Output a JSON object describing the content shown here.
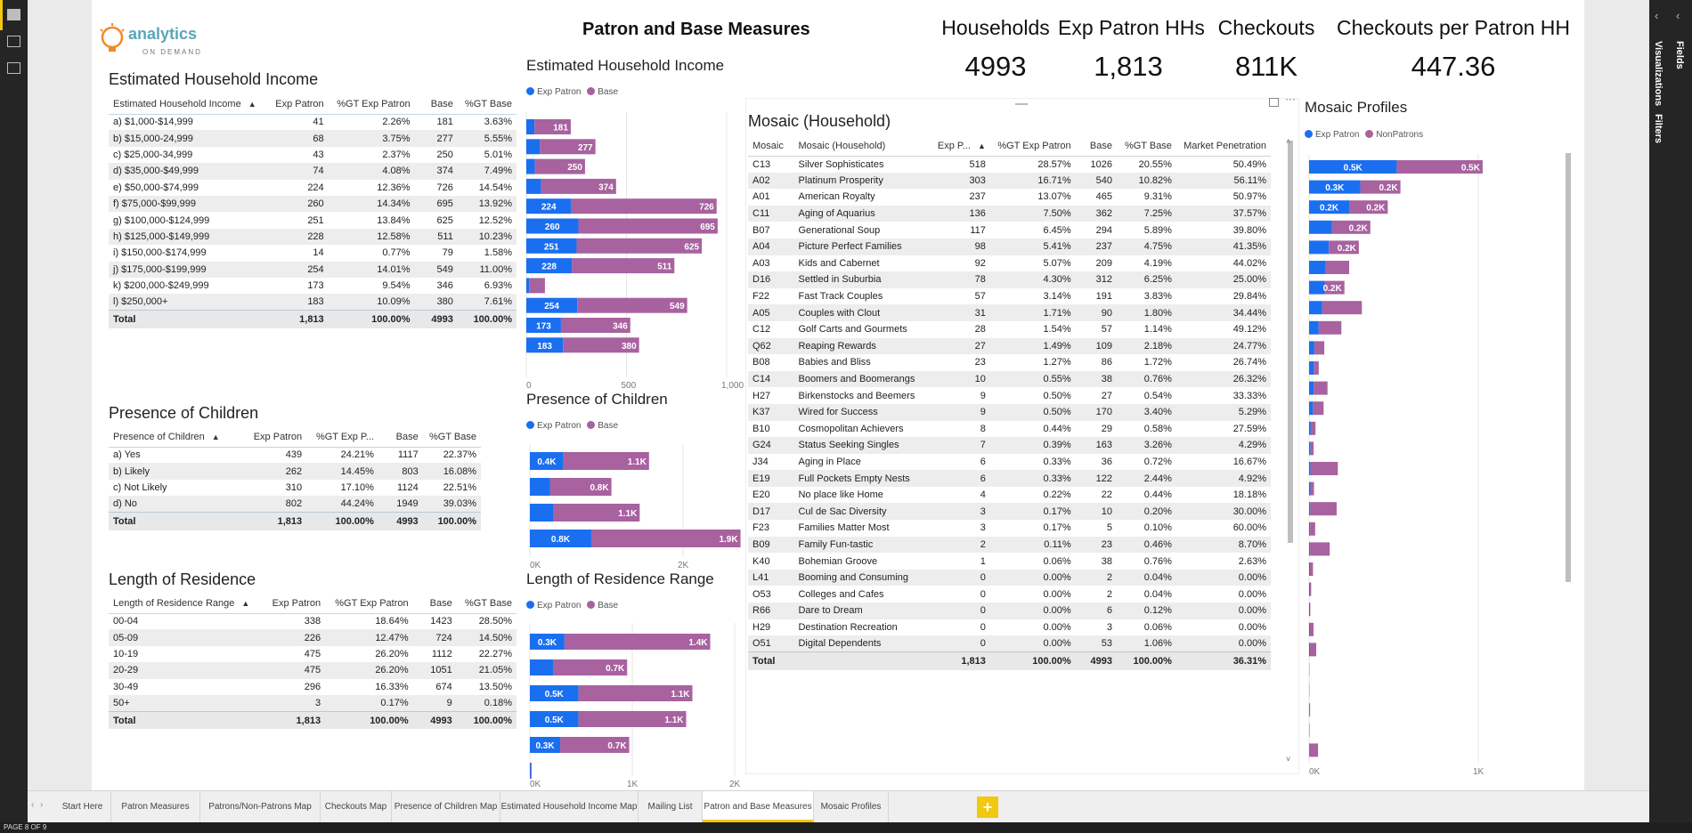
{
  "page_title": "Patron and Base Measures",
  "logo": {
    "main": "analytics",
    "sub": "ON DEMAND"
  },
  "cards": [
    {
      "label": "Households",
      "value": "4993"
    },
    {
      "label": "Exp Patron HHs",
      "value": "1,813"
    },
    {
      "label": "Checkouts",
      "value": "811K"
    },
    {
      "label": "Checkouts per Patron HH",
      "value": "447.36"
    }
  ],
  "income_table": {
    "title": "Estimated Household Income",
    "headers": [
      "Estimated Household Income",
      "Exp Patron",
      "%GT Exp Patron",
      "Base",
      "%GT Base"
    ],
    "rows": [
      [
        "a) $1,000-$14,999",
        "41",
        "2.26%",
        "181",
        "3.63%"
      ],
      [
        "b) $15,000-24,999",
        "68",
        "3.75%",
        "277",
        "5.55%"
      ],
      [
        "c) $25,000-34,999",
        "43",
        "2.37%",
        "250",
        "5.01%"
      ],
      [
        "d) $35,000-$49,999",
        "74",
        "4.08%",
        "374",
        "7.49%"
      ],
      [
        "e) $50,000-$74,999",
        "224",
        "12.36%",
        "726",
        "14.54%"
      ],
      [
        "f) $75,000-$99,999",
        "260",
        "14.34%",
        "695",
        "13.92%"
      ],
      [
        "g) $100,000-$124,999",
        "251",
        "13.84%",
        "625",
        "12.52%"
      ],
      [
        "h) $125,000-$149,999",
        "228",
        "12.58%",
        "511",
        "10.23%"
      ],
      [
        "i) $150,000-$174,999",
        "14",
        "0.77%",
        "79",
        "1.58%"
      ],
      [
        "j) $175,000-$199,999",
        "254",
        "14.01%",
        "549",
        "11.00%"
      ],
      [
        "k) $200,000-$249,999",
        "173",
        "9.54%",
        "346",
        "6.93%"
      ],
      [
        "l) $250,000+",
        "183",
        "10.09%",
        "380",
        "7.61%"
      ]
    ],
    "total": [
      "Total",
      "1,813",
      "100.00%",
      "4993",
      "100.00%"
    ]
  },
  "children_table": {
    "title": "Presence of Children",
    "headers": [
      "Presence of Children",
      "Exp Patron",
      "%GT Exp P...",
      "Base",
      "%GT Base"
    ],
    "rows": [
      [
        "a) Yes",
        "439",
        "24.21%",
        "1117",
        "22.37%"
      ],
      [
        "b) Likely",
        "262",
        "14.45%",
        "803",
        "16.08%"
      ],
      [
        "c) Not Likely",
        "310",
        "17.10%",
        "1124",
        "22.51%"
      ],
      [
        "d) No",
        "802",
        "44.24%",
        "1949",
        "39.03%"
      ]
    ],
    "total": [
      "Total",
      "1,813",
      "100.00%",
      "4993",
      "100.00%"
    ]
  },
  "residence_table": {
    "title": "Length of Residence",
    "headers": [
      "Length of Residence Range",
      "Exp Patron",
      "%GT Exp Patron",
      "Base",
      "%GT Base"
    ],
    "rows": [
      [
        "00-04",
        "338",
        "18.64%",
        "1423",
        "28.50%"
      ],
      [
        "05-09",
        "226",
        "12.47%",
        "724",
        "14.50%"
      ],
      [
        "10-19",
        "475",
        "26.20%",
        "1112",
        "22.27%"
      ],
      [
        "20-29",
        "475",
        "26.20%",
        "1051",
        "21.05%"
      ],
      [
        "30-49",
        "296",
        "16.33%",
        "674",
        "13.50%"
      ],
      [
        "50+",
        "3",
        "0.17%",
        "9",
        "0.18%"
      ]
    ],
    "total": [
      "Total",
      "1,813",
      "100.00%",
      "4993",
      "100.00%"
    ]
  },
  "mosaic_table": {
    "title": "Mosaic (Household)",
    "headers": [
      "Mosaic",
      "Mosaic (Household)",
      "Exp P...",
      "%GT Exp Patron",
      "Base",
      "%GT Base",
      "Market Penetration"
    ],
    "rows": [
      [
        "C13",
        "Silver Sophisticates",
        "518",
        "28.57%",
        "1026",
        "20.55%",
        "50.49%"
      ],
      [
        "A02",
        "Platinum Prosperity",
        "303",
        "16.71%",
        "540",
        "10.82%",
        "56.11%"
      ],
      [
        "A01",
        "American Royalty",
        "237",
        "13.07%",
        "465",
        "9.31%",
        "50.97%"
      ],
      [
        "C11",
        "Aging of Aquarius",
        "136",
        "7.50%",
        "362",
        "7.25%",
        "37.57%"
      ],
      [
        "B07",
        "Generational Soup",
        "117",
        "6.45%",
        "294",
        "5.89%",
        "39.80%"
      ],
      [
        "A04",
        "Picture Perfect Families",
        "98",
        "5.41%",
        "237",
        "4.75%",
        "41.35%"
      ],
      [
        "A03",
        "Kids and Cabernet",
        "92",
        "5.07%",
        "209",
        "4.19%",
        "44.02%"
      ],
      [
        "D16",
        "Settled in Suburbia",
        "78",
        "4.30%",
        "312",
        "6.25%",
        "25.00%"
      ],
      [
        "F22",
        "Fast Track Couples",
        "57",
        "3.14%",
        "191",
        "3.83%",
        "29.84%"
      ],
      [
        "A05",
        "Couples with Clout",
        "31",
        "1.71%",
        "90",
        "1.80%",
        "34.44%"
      ],
      [
        "C12",
        "Golf Carts and Gourmets",
        "28",
        "1.54%",
        "57",
        "1.14%",
        "49.12%"
      ],
      [
        "Q62",
        "Reaping Rewards",
        "27",
        "1.49%",
        "109",
        "2.18%",
        "24.77%"
      ],
      [
        "B08",
        "Babies and Bliss",
        "23",
        "1.27%",
        "86",
        "1.72%",
        "26.74%"
      ],
      [
        "C14",
        "Boomers and Boomerangs",
        "10",
        "0.55%",
        "38",
        "0.76%",
        "26.32%"
      ],
      [
        "H27",
        "Birkenstocks and Beemers",
        "9",
        "0.50%",
        "27",
        "0.54%",
        "33.33%"
      ],
      [
        "K37",
        "Wired for Success",
        "9",
        "0.50%",
        "170",
        "3.40%",
        "5.29%"
      ],
      [
        "B10",
        "Cosmopolitan Achievers",
        "8",
        "0.44%",
        "29",
        "0.58%",
        "27.59%"
      ],
      [
        "G24",
        "Status Seeking Singles",
        "7",
        "0.39%",
        "163",
        "3.26%",
        "4.29%"
      ],
      [
        "J34",
        "Aging in Place",
        "6",
        "0.33%",
        "36",
        "0.72%",
        "16.67%"
      ],
      [
        "E19",
        "Full Pockets  Empty Nests",
        "6",
        "0.33%",
        "122",
        "2.44%",
        "4.92%"
      ],
      [
        "E20",
        "No place like Home",
        "4",
        "0.22%",
        "22",
        "0.44%",
        "18.18%"
      ],
      [
        "D17",
        "Cul de Sac Diversity",
        "3",
        "0.17%",
        "10",
        "0.20%",
        "30.00%"
      ],
      [
        "F23",
        "Families Matter Most",
        "3",
        "0.17%",
        "5",
        "0.10%",
        "60.00%"
      ],
      [
        "B09",
        "Family Fun-tastic",
        "2",
        "0.11%",
        "23",
        "0.46%",
        "8.70%"
      ],
      [
        "K40",
        "Bohemian Groove",
        "1",
        "0.06%",
        "38",
        "0.76%",
        "2.63%"
      ],
      [
        "L41",
        "Booming and Consuming",
        "0",
        "0.00%",
        "2",
        "0.04%",
        "0.00%"
      ],
      [
        "O53",
        "Colleges and Cafes",
        "0",
        "0.00%",
        "2",
        "0.04%",
        "0.00%"
      ],
      [
        "R66",
        "Dare to Dream",
        "0",
        "0.00%",
        "6",
        "0.12%",
        "0.00%"
      ],
      [
        "H29",
        "Destination Recreation",
        "0",
        "0.00%",
        "3",
        "0.06%",
        "0.00%"
      ],
      [
        "O51",
        "Digital Dependents",
        "0",
        "0.00%",
        "53",
        "1.06%",
        "0.00%"
      ]
    ],
    "total": [
      "Total",
      "",
      "1,813",
      "100.00%",
      "4993",
      "100.00%",
      "36.31%"
    ]
  },
  "chart_data": [
    {
      "type": "bar",
      "orientation": "horizontal",
      "stacked": true,
      "title": "Estimated Household Income",
      "legend": [
        "Exp Patron",
        "Base"
      ],
      "colors": {
        "Exp Patron": "#1a6ff0",
        "Base": "#a8629f"
      },
      "series": [
        {
          "name": "Exp Patron",
          "values": [
            41,
            68,
            43,
            74,
            224,
            260,
            251,
            228,
            14,
            254,
            173,
            183
          ]
        },
        {
          "name": "Base",
          "values": [
            181,
            277,
            250,
            374,
            726,
            695,
            625,
            511,
            79,
            549,
            346,
            380
          ]
        }
      ],
      "segment_labels": {
        "Exp Patron": [
          "",
          "",
          "",
          "",
          "224",
          "260",
          "251",
          "228",
          "",
          "254",
          "173",
          "183"
        ],
        "Base": [
          "181",
          "277",
          "250",
          "374",
          "726",
          "695",
          "625",
          "511",
          "",
          "549",
          "346",
          "380"
        ]
      },
      "axis_max": 1000,
      "ticks": [
        {
          "v": 0,
          "label": "0"
        },
        {
          "v": 500,
          "label": "500"
        },
        {
          "v": 1000,
          "label": "1,000"
        }
      ]
    },
    {
      "type": "bar",
      "orientation": "horizontal",
      "stacked": true,
      "title": "Presence of Children",
      "legend": [
        "Exp Patron",
        "Base"
      ],
      "colors": {
        "Exp Patron": "#1a6ff0",
        "Base": "#a8629f"
      },
      "series": [
        {
          "name": "Exp Patron",
          "values": [
            439,
            262,
            310,
            802
          ]
        },
        {
          "name": "Base",
          "values": [
            1117,
            803,
            1124,
            1949
          ]
        }
      ],
      "segment_labels": {
        "Exp Patron": [
          "0.4K",
          "",
          "",
          "0.8K"
        ],
        "Base": [
          "1.1K",
          "0.8K",
          "1.1K",
          "1.9K"
        ]
      },
      "axis_max": 2500,
      "ticks": [
        {
          "v": 0,
          "label": "0K"
        },
        {
          "v": 2000,
          "label": "2K"
        }
      ]
    },
    {
      "type": "bar",
      "orientation": "horizontal",
      "stacked": true,
      "title": "Length of Residence Range",
      "legend": [
        "Exp Patron",
        "Base"
      ],
      "colors": {
        "Exp Patron": "#1a6ff0",
        "Base": "#a8629f"
      },
      "series": [
        {
          "name": "Exp Patron",
          "values": [
            338,
            226,
            475,
            475,
            296,
            3
          ]
        },
        {
          "name": "Base",
          "values": [
            1423,
            724,
            1112,
            1051,
            674,
            9
          ]
        }
      ],
      "segment_labels": {
        "Exp Patron": [
          "0.3K",
          "",
          "0.5K",
          "0.5K",
          "0.3K",
          ""
        ],
        "Base": [
          "1.4K",
          "0.7K",
          "1.1K",
          "1.1K",
          "0.7K",
          ""
        ]
      },
      "axis_max": 2000,
      "ticks": [
        {
          "v": 0,
          "label": "0K"
        },
        {
          "v": 1000,
          "label": "1K"
        },
        {
          "v": 2000,
          "label": "2K"
        }
      ]
    },
    {
      "type": "bar",
      "orientation": "horizontal",
      "stacked": true,
      "title": "Mosaic Profiles",
      "legend": [
        "Exp Patron",
        "NonPatrons"
      ],
      "colors": {
        "Exp Patron": "#1a6ff0",
        "NonPatrons": "#a8629f"
      },
      "series": [
        {
          "name": "Exp Patron",
          "values": [
            518,
            303,
            237,
            136,
            117,
            98,
            92,
            78,
            57,
            31,
            28,
            27,
            23,
            10,
            9,
            9,
            8,
            7,
            6,
            6,
            4,
            3,
            3,
            2,
            1,
            0,
            0,
            0,
            0,
            0
          ]
        },
        {
          "name": "NonPatrons",
          "values": [
            508,
            237,
            228,
            226,
            177,
            139,
            117,
            234,
            134,
            59,
            29,
            82,
            63,
            28,
            18,
            161,
            21,
            156,
            30,
            116,
            18,
            7,
            2,
            21,
            37,
            2,
            2,
            6,
            3,
            53
          ]
        }
      ],
      "segment_labels": {
        "Exp Patron": [
          "0.5K",
          "0.3K",
          "0.2K",
          "",
          "",
          "",
          "",
          "",
          "",
          "",
          "",
          "",
          "",
          "",
          "",
          "",
          "",
          "",
          "",
          "",
          "",
          "",
          "",
          "",
          "",
          "",
          "",
          "",
          "",
          ""
        ],
        "NonPatrons": [
          "0.5K",
          "0.2K",
          "0.2K",
          "0.2K",
          "0.2K",
          "",
          "0.2K",
          "",
          "",
          "",
          "",
          "",
          "",
          "",
          "",
          "",
          "",
          "",
          "",
          "",
          "",
          "",
          "",
          "",
          "",
          "",
          "",
          "",
          "",
          ""
        ]
      },
      "axis_max": 1000,
      "ticks": [
        {
          "v": 0,
          "label": "0K"
        },
        {
          "v": 1000,
          "label": "1K"
        }
      ]
    }
  ],
  "tabs": [
    "Start Here",
    "Patron Measures",
    "Patrons/Non-Patrons Map",
    "Checkouts Map",
    "Presence of Children Map",
    "Estimated Household Income Map",
    "Mailing List",
    "Patron and Base Measures",
    "Mosaic Profiles"
  ],
  "active_tab": "Patron and Base Measures",
  "add_tab": "+",
  "status": "PAGE 8 OF 9",
  "right_pane": {
    "visualizations": "Visualizations",
    "fields": "Fields",
    "filters": "Filters"
  }
}
